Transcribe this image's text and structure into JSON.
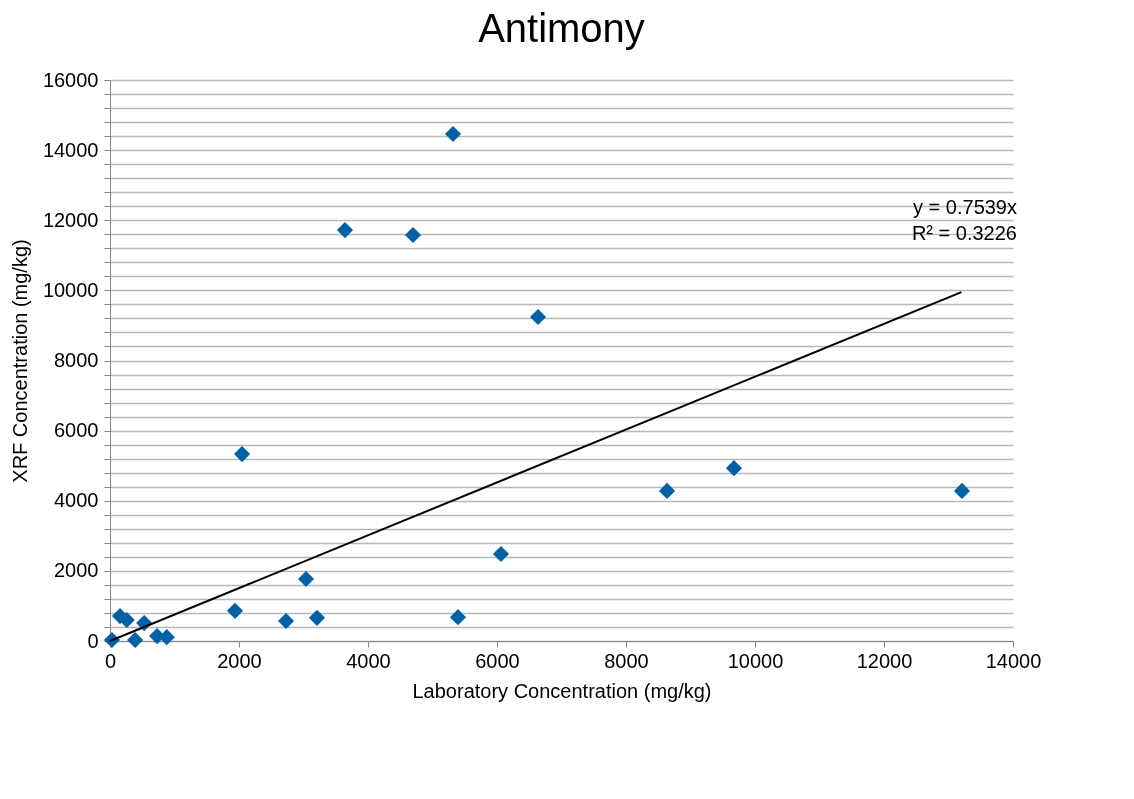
{
  "chart_data": {
    "type": "scatter",
    "title": "Antimony",
    "xlabel": "Laboratory Concentration (mg/kg)",
    "ylabel": "XRF Concentration (mg/kg)",
    "xlim": [
      0,
      14000
    ],
    "xticks": [
      0,
      2000,
      4000,
      6000,
      8000,
      10000,
      12000,
      14000
    ],
    "ylim": [
      0,
      16000
    ],
    "yticks": [
      0,
      {
        "value": 400,
        "label": null
      },
      {
        "value": 800,
        "label": null
      },
      {
        "value": 1200,
        "label": null
      },
      {
        "value": 1600,
        "label": null
      },
      2000,
      {
        "value": 2400,
        "label": null
      },
      {
        "value": 2800,
        "label": null
      },
      {
        "value": 3200,
        "label": null
      },
      {
        "value": 3600,
        "label": null
      },
      4000,
      {
        "value": 4400,
        "label": null
      },
      {
        "value": 4800,
        "label": null
      },
      {
        "value": 5200,
        "label": null
      },
      {
        "value": 5600,
        "label": null
      },
      6000,
      {
        "value": 6400,
        "label": null
      },
      {
        "value": 6800,
        "label": null
      },
      {
        "value": 7200,
        "label": null
      },
      {
        "value": 7600,
        "label": null
      },
      8000,
      {
        "value": 8400,
        "label": null
      },
      {
        "value": 8800,
        "label": null
      },
      {
        "value": 9200,
        "label": null
      },
      {
        "value": 9600,
        "label": null
      },
      10000,
      {
        "value": 10400,
        "label": null
      },
      {
        "value": 10800,
        "label": null
      },
      {
        "value": 11200,
        "label": null
      },
      {
        "value": 11600,
        "label": null
      },
      12000,
      {
        "value": 12400,
        "label": null
      },
      {
        "value": 12800,
        "label": null
      },
      {
        "value": 13200,
        "label": null
      },
      {
        "value": 13600,
        "label": null
      },
      14000,
      {
        "value": 14400,
        "label": null
      },
      {
        "value": 14800,
        "label": null
      },
      {
        "value": 15200,
        "label": null
      },
      {
        "value": 15600,
        "label": null
      },
      16000
    ],
    "grid": "y",
    "marker": "diamond",
    "annotations": [
      "y = 0.7539x",
      "R² = 0.3226"
    ],
    "series": [
      {
        "color": "#0061a6",
        "x": [
          5318,
          3643,
          4698,
          6636,
          2047,
          6062,
          8636,
          9674,
          13209,
          3039,
          1938,
          2729,
          3209,
          5395,
          155,
          530,
          30,
          390,
          730,
          880,
          260
        ],
        "values": [
          14460,
          11720,
          11580,
          9240,
          5330,
          2480,
          4280,
          4930,
          4280,
          1770,
          860,
          570,
          660,
          680,
          710,
          510,
          30,
          30,
          140,
          110,
          600
        ]
      },
      {
        "type": "line",
        "color": "#000000",
        "marker": "none",
        "x": [
          0,
          13200
        ],
        "values": [
          0,
          9950
        ]
      }
    ]
  }
}
